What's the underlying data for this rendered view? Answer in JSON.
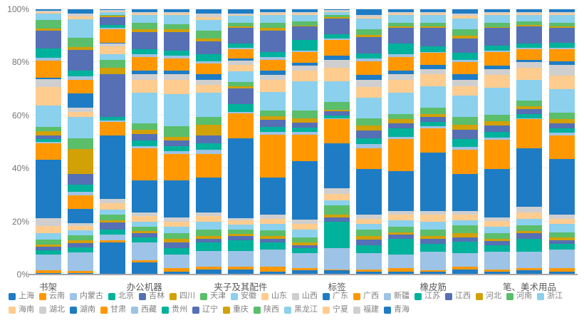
{
  "chart_data": {
    "type": "bar",
    "subtype": "stacked-100-percent",
    "title": "",
    "xlabel": "",
    "ylabel": "",
    "ylim": [
      0,
      100
    ],
    "y_ticks": [
      "0%",
      "20%",
      "40%",
      "60%",
      "80%",
      "100%"
    ],
    "grid": true,
    "legend_position": "bottom",
    "x_tick_label_interval": 3,
    "x_tick_labels_visible": [
      "书架",
      "办公机器",
      "夹子及其配件",
      "标签",
      "橡皮筋",
      "笔、美术用品"
    ],
    "series_names": [
      "上海",
      "云南",
      "内蒙古",
      "北京",
      "吉林",
      "四川",
      "天津",
      "安徽",
      "山东",
      "山西",
      "广东",
      "广西",
      "新疆",
      "江苏",
      "江西",
      "河北",
      "河南",
      "浙江",
      "海南",
      "湖北",
      "湖南",
      "甘肃",
      "西藏",
      "贵州",
      "辽宁",
      "重庆",
      "陕西",
      "黑龙江",
      "宁夏",
      "福建",
      "青海"
    ],
    "palette": [
      "#1e7cc4",
      "#ff9800",
      "#9dc3e6",
      "#00b29b",
      "#5570b4",
      "#d2a106",
      "#5abe6b",
      "#8bd0ed",
      "#ffcc8f",
      "#cfcfcf"
    ],
    "axis_colors": {
      "tick_text": "#757575",
      "x_tick_text": "#595959",
      "grid": "#ececec",
      "baseline": "#a6a6a6",
      "legend_text": "#7f7f7f"
    },
    "bars": [
      {
        "x_label": "书架",
        "values": [
          0.5,
          1,
          6,
          1.5,
          1.5,
          0.8,
          1.7,
          2.5,
          2.5,
          3,
          22,
          6,
          0.5,
          1,
          1.5,
          1.5,
          1.5,
          8,
          7,
          3,
          0.5,
          6.5,
          1,
          3.5,
          6.5,
          1,
          3,
          2.5,
          0.5,
          0.5,
          0.5
        ]
      },
      {
        "x_label": "",
        "values": [
          0.5,
          0.8,
          7,
          2,
          1.5,
          1,
          2,
          2,
          1.5,
          1,
          5.5,
          5,
          1.5,
          2.5,
          4,
          9.5,
          4,
          8,
          2,
          1.5,
          5.5,
          5,
          1.5,
          2,
          8,
          1,
          3.5,
          7,
          1,
          1.2,
          1.5
        ]
      },
      {
        "x_label": "",
        "values": [
          12,
          1,
          2,
          2,
          2.5,
          1,
          2,
          2,
          2.5,
          1.5,
          24,
          5,
          0.5,
          1.5,
          16,
          2.5,
          3,
          2,
          3,
          1,
          0.5,
          5,
          0.5,
          1,
          3,
          0.5,
          0.5,
          1,
          0.3,
          0.4,
          0.3
        ]
      },
      {
        "x_label": "办公机器",
        "values": [
          4.5,
          1,
          6.5,
          2,
          1.5,
          1,
          1.5,
          2,
          2,
          1.5,
          12,
          12,
          1,
          2,
          2.5,
          1.5,
          2.5,
          11.5,
          5,
          2,
          1.5,
          5,
          1,
          2,
          6.5,
          1,
          2.5,
          3,
          0.5,
          0.5,
          1
        ]
      },
      {
        "x_label": "",
        "values": [
          1,
          1.5,
          5,
          2.5,
          2,
          1.5,
          2,
          2.5,
          2,
          1.5,
          14,
          10,
          1,
          2,
          2,
          1.5,
          4,
          12,
          5.5,
          2,
          1.5,
          4.5,
          1,
          2,
          7,
          1,
          2,
          3.5,
          0.5,
          0.5,
          1
        ]
      },
      {
        "x_label": "",
        "values": [
          2,
          1,
          6,
          3,
          1.5,
          1,
          2.5,
          3,
          2,
          1.5,
          13,
          9,
          1.5,
          2.5,
          3,
          4,
          3,
          9,
          3,
          2,
          2,
          4,
          1,
          2.5,
          5,
          1,
          3,
          4,
          1,
          1.5,
          1.5
        ]
      },
      {
        "x_label": "夹子及其配件",
        "values": [
          2,
          1,
          6,
          4,
          1.5,
          1,
          1.5,
          2,
          1.5,
          1,
          30,
          9.5,
          0.5,
          3,
          6,
          1,
          1.5,
          4,
          2.5,
          1.5,
          1,
          3.5,
          0.5,
          1.5,
          6,
          0.5,
          1.5,
          2.5,
          0.5,
          0.5,
          1.5
        ]
      },
      {
        "x_label": "",
        "values": [
          1,
          2,
          6.5,
          2.5,
          1.5,
          1,
          2,
          2.5,
          2,
          1.5,
          14,
          16,
          1,
          2,
          2.5,
          1.5,
          2,
          7,
          4.5,
          2,
          1.5,
          4,
          1,
          2,
          8,
          1,
          2,
          3,
          0.5,
          0.5,
          1
        ]
      },
      {
        "x_label": "",
        "values": [
          1.5,
          1,
          5.5,
          2,
          1,
          1,
          2,
          3,
          2,
          1.5,
          22,
          10,
          1,
          1.5,
          2,
          1.5,
          3,
          11,
          4,
          2,
          1,
          4,
          0.5,
          4,
          5,
          0.5,
          1.5,
          2.5,
          0.5,
          0.5,
          1
        ]
      },
      {
        "x_label": "标签",
        "values": [
          1.5,
          0.5,
          8,
          10,
          1.5,
          1,
          3.5,
          2,
          2.5,
          2,
          17,
          9,
          0.5,
          1,
          1.5,
          0.5,
          3,
          8,
          5,
          3,
          1.5,
          6,
          0.5,
          1.5,
          6,
          0.5,
          1,
          1,
          0.3,
          0.4,
          0.3
        ]
      },
      {
        "x_label": "",
        "values": [
          1,
          1,
          6,
          3,
          2,
          1.5,
          2.5,
          2,
          2,
          1.5,
          17,
          8,
          1.5,
          2,
          3,
          2,
          2.5,
          8,
          4,
          2.5,
          2,
          5,
          1,
          2,
          6,
          1,
          2,
          4,
          0.5,
          1,
          2
        ]
      },
      {
        "x_label": "",
        "values": [
          1,
          1.5,
          5,
          6,
          1.5,
          1,
          2,
          2.5,
          2,
          1.5,
          15,
          12,
          1,
          3,
          2,
          1.5,
          2,
          8,
          5,
          2,
          1.5,
          5,
          1,
          4,
          6,
          0.5,
          1.5,
          3,
          0.5,
          0.5,
          1
        ]
      },
      {
        "x_label": "橡皮筋",
        "values": [
          1,
          0.5,
          7,
          3,
          2,
          1,
          2.5,
          3,
          2.5,
          1.5,
          22,
          9,
          1,
          1.5,
          2,
          1,
          2.5,
          8,
          4.5,
          2,
          1.5,
          4.5,
          0.5,
          2,
          7,
          0.5,
          1.5,
          3,
          0.5,
          0.5,
          1
        ]
      },
      {
        "x_label": "",
        "values": [
          2,
          1,
          5,
          4.5,
          1.5,
          1.5,
          3,
          2,
          2,
          1.5,
          14,
          9,
          1,
          3,
          3.5,
          2,
          3,
          8,
          3.5,
          2.5,
          2,
          4.5,
          1,
          2.5,
          5.5,
          1,
          2.5,
          4,
          1,
          1,
          1.5
        ]
      },
      {
        "x_label": "",
        "values": [
          1,
          1,
          6.5,
          2.5,
          1.5,
          1,
          2,
          2.5,
          2,
          1.5,
          18,
          11,
          1,
          2,
          2.5,
          1.5,
          2.5,
          10,
          5,
          2,
          1.5,
          5,
          0.5,
          2,
          6.5,
          0.5,
          1.5,
          3,
          0.5,
          0.5,
          1
        ]
      },
      {
        "x_label": "笔、美术用品",
        "values": [
          1.5,
          1,
          6,
          5,
          2,
          1,
          2,
          2.5,
          2.5,
          2,
          22,
          11,
          0.5,
          1.5,
          2,
          1,
          2,
          8,
          4.5,
          2,
          1,
          4,
          0.5,
          1.5,
          6.5,
          0.5,
          1.5,
          2.5,
          0.5,
          0.5,
          1
        ]
      },
      {
        "x_label": "",
        "values": [
          1,
          1.5,
          7,
          2,
          1.5,
          1,
          2,
          3,
          2,
          1.5,
          21,
          9,
          1,
          1.5,
          2,
          1.5,
          2.5,
          9,
          5,
          4,
          1.5,
          4.5,
          0.5,
          2,
          5.5,
          0.5,
          1.5,
          3,
          0.5,
          0.5,
          1
        ]
      }
    ]
  }
}
